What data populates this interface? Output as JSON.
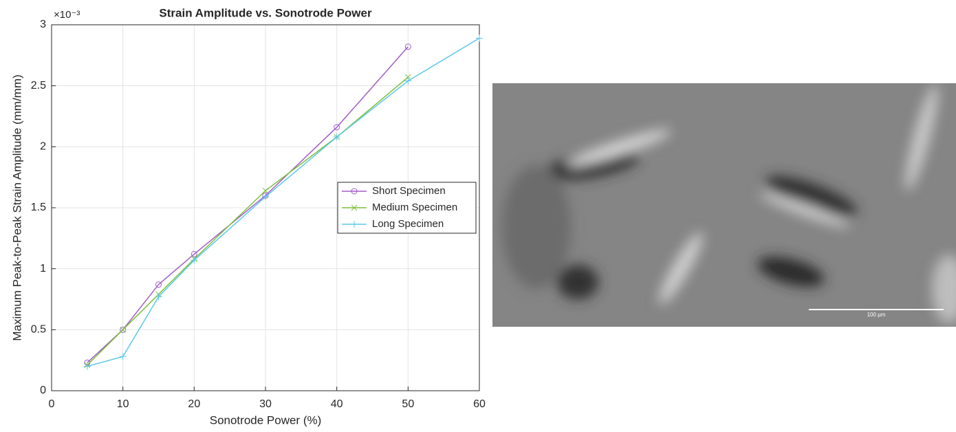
{
  "chart_data": {
    "type": "line",
    "title": "Strain Amplitude vs. Sonotrode Power",
    "x_label": "Sonotrode Power (%)",
    "y_label": "Maximum Peak-to-Peak Strain Amplitude (mm/mm)",
    "y_multiplier": "×10⁻³",
    "xlim": [
      0,
      60
    ],
    "xticks": [
      0,
      10,
      20,
      30,
      40,
      50,
      60
    ],
    "ylim": [
      0,
      3
    ],
    "yticks": [
      0,
      0.5,
      1,
      1.5,
      2,
      2.5,
      3
    ],
    "grid": true,
    "legend": "right",
    "series": [
      {
        "name": "Short Specimen",
        "color": "#a05cc8",
        "marker": "circle",
        "x": [
          5,
          10,
          15,
          20,
          30,
          40,
          50
        ],
        "values": [
          0.23,
          0.5,
          0.87,
          1.12,
          1.6,
          2.16,
          2.82
        ]
      },
      {
        "name": "Medium Specimen",
        "color": "#7cbf3c",
        "marker": "x",
        "x": [
          5,
          10,
          15,
          20,
          30,
          40,
          50
        ],
        "values": [
          0.21,
          0.5,
          0.79,
          1.08,
          1.64,
          2.08,
          2.57
        ]
      },
      {
        "name": "Long Specimen",
        "color": "#5bc8e8",
        "marker": "plus",
        "x": [
          5,
          10,
          15,
          20,
          30,
          40,
          50,
          60
        ],
        "values": [
          0.2,
          0.28,
          0.77,
          1.07,
          1.59,
          2.08,
          2.54,
          2.89
        ]
      }
    ]
  },
  "image": {
    "scale_bar": "100 µm"
  }
}
